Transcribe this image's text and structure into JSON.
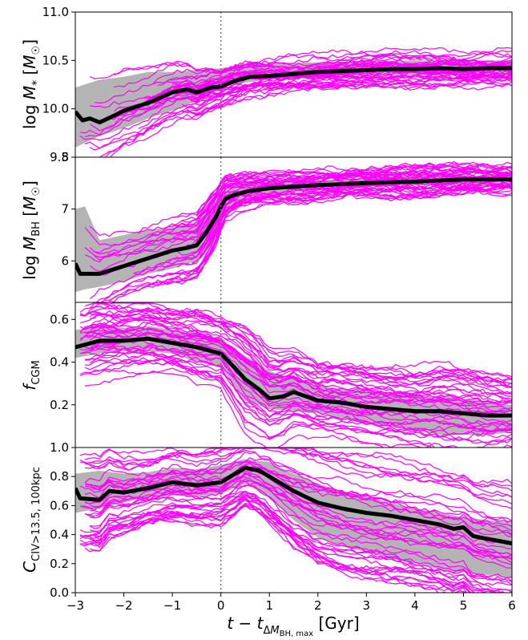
{
  "chart_data": {
    "type": "line",
    "xlabel": "t − t_{ΔM_BH,max} [Gyr]",
    "xlim": [
      -3,
      6
    ],
    "xticks": [
      -3,
      -2,
      -1,
      0,
      1,
      2,
      3,
      4,
      5,
      6
    ],
    "xtick_labels": [
      "−3",
      "−2",
      "−1",
      "0",
      "1",
      "2",
      "3",
      "4",
      "5",
      "6"
    ],
    "vline_x": 0,
    "colors": {
      "individual": "#ff00ff",
      "median": "#000000",
      "band": "#b4b4b4",
      "vline": "#777777"
    },
    "panels": [
      {
        "ylabel": "log M* [M☉]",
        "ylim": [
          9.5,
          11.0
        ],
        "yticks": [
          9.5,
          10.0,
          10.5,
          11.0
        ],
        "ytick_labels": [
          "9.5",
          "10.0",
          "10.5",
          "11.0"
        ],
        "median": {
          "x": [
            -3.0,
            -2.85,
            -2.7,
            -2.5,
            -2.2,
            -2.0,
            -1.5,
            -1.0,
            -0.7,
            -0.5,
            -0.2,
            0.0,
            0.3,
            0.6,
            1.0,
            1.5,
            2.0,
            2.5,
            3.0,
            3.5,
            4.0,
            4.5,
            5.0,
            5.5,
            6.0
          ],
          "y": [
            9.97,
            9.88,
            9.9,
            9.86,
            9.93,
            9.98,
            10.06,
            10.17,
            10.2,
            10.17,
            10.22,
            10.23,
            10.29,
            10.33,
            10.34,
            10.36,
            10.38,
            10.39,
            10.4,
            10.41,
            10.41,
            10.42,
            10.41,
            10.42,
            10.42
          ]
        },
        "band": {
          "x": [
            -3.0,
            -2.5,
            -2.0,
            -1.5,
            -1.0,
            -0.5,
            0.0,
            0.5,
            1.0,
            2.0,
            3.0,
            4.0,
            5.0,
            6.0
          ],
          "low": [
            9.6,
            9.72,
            9.8,
            9.9,
            9.98,
            10.08,
            10.22,
            10.27,
            10.3,
            10.33,
            10.34,
            10.35,
            10.35,
            10.35
          ],
          "high": [
            10.22,
            10.3,
            10.33,
            10.38,
            10.38,
            10.4,
            10.42,
            10.46,
            10.47,
            10.48,
            10.49,
            10.5,
            10.5,
            10.5
          ]
        }
      },
      {
        "ylabel": "log M_BH [M☉]",
        "ylim": [
          5.2,
          8.0
        ],
        "yticks": [
          6,
          7,
          8
        ],
        "ytick_labels": [
          "6",
          "7",
          "8"
        ],
        "median": {
          "x": [
            -3.0,
            -2.9,
            -2.5,
            -2.0,
            -1.5,
            -1.0,
            -0.7,
            -0.5,
            -0.3,
            -0.1,
            0.0,
            0.1,
            0.3,
            0.6,
            1.0,
            1.5,
            2.0,
            3.0,
            4.0,
            5.0,
            6.0
          ],
          "y": [
            5.95,
            5.75,
            5.75,
            5.9,
            6.05,
            6.2,
            6.25,
            6.3,
            6.55,
            6.85,
            7.05,
            7.2,
            7.28,
            7.35,
            7.4,
            7.43,
            7.46,
            7.5,
            7.53,
            7.57,
            7.57
          ]
        },
        "band": {
          "x": [
            -3.0,
            -2.8,
            -2.5,
            -2.0,
            -1.5,
            -1.0,
            -0.5,
            -0.2,
            0.0,
            0.3,
            1.0,
            2.0,
            3.0,
            4.0,
            5.0,
            6.0
          ],
          "low": [
            5.4,
            5.45,
            5.5,
            5.6,
            5.75,
            5.85,
            6.0,
            6.3,
            6.8,
            7.15,
            7.3,
            7.38,
            7.42,
            7.45,
            7.48,
            7.5
          ],
          "high": [
            7.0,
            7.05,
            6.4,
            6.5,
            6.6,
            6.65,
            6.75,
            7.0,
            7.3,
            7.45,
            7.5,
            7.55,
            7.6,
            7.62,
            7.64,
            7.65
          ]
        }
      },
      {
        "ylabel": "f_CGM",
        "ylim": [
          0.0,
          0.68
        ],
        "yticks": [
          0.2,
          0.4,
          0.6
        ],
        "ytick_labels": [
          "0.2",
          "0.4",
          "0.6"
        ],
        "median": {
          "x": [
            -3.0,
            -2.5,
            -2.0,
            -1.5,
            -1.0,
            -0.5,
            0.0,
            0.3,
            0.5,
            0.8,
            1.0,
            1.3,
            1.5,
            2.0,
            2.5,
            3.0,
            3.5,
            4.0,
            4.5,
            5.0,
            5.5,
            6.0
          ],
          "y": [
            0.47,
            0.5,
            0.5,
            0.51,
            0.49,
            0.47,
            0.44,
            0.37,
            0.32,
            0.27,
            0.23,
            0.24,
            0.26,
            0.22,
            0.21,
            0.19,
            0.18,
            0.17,
            0.17,
            0.16,
            0.15,
            0.15
          ]
        },
        "band": {
          "x": [
            -3.0,
            -2.5,
            -2.0,
            -1.5,
            -1.0,
            -0.5,
            0.0,
            0.5,
            1.0,
            1.5,
            2.0,
            3.0,
            4.0,
            4.5,
            5.0,
            5.5,
            6.0
          ],
          "low": [
            0.42,
            0.44,
            0.45,
            0.45,
            0.44,
            0.4,
            0.38,
            0.22,
            0.18,
            0.17,
            0.16,
            0.12,
            0.08,
            0.06,
            0.06,
            0.06,
            0.07
          ],
          "high": [
            0.55,
            0.57,
            0.56,
            0.57,
            0.55,
            0.54,
            0.5,
            0.43,
            0.36,
            0.32,
            0.29,
            0.26,
            0.24,
            0.24,
            0.23,
            0.21,
            0.2
          ]
        }
      },
      {
        "ylabel": "C_CIV>13.5, 100kpc",
        "ylim": [
          0.0,
          1.0
        ],
        "yticks": [
          0.0,
          0.2,
          0.4,
          0.6,
          0.8,
          1.0
        ],
        "ytick_labels": [
          "0.0",
          "0.2",
          "0.4",
          "0.6",
          "0.8",
          "1.0"
        ],
        "median": {
          "x": [
            -3.0,
            -2.9,
            -2.5,
            -2.3,
            -2.0,
            -1.5,
            -1.0,
            -0.5,
            0.0,
            0.2,
            0.5,
            0.8,
            1.0,
            1.5,
            2.0,
            2.5,
            3.0,
            3.5,
            4.0,
            4.5,
            4.8,
            5.0,
            5.2,
            5.5,
            6.0
          ],
          "y": [
            0.72,
            0.65,
            0.64,
            0.7,
            0.69,
            0.72,
            0.76,
            0.74,
            0.76,
            0.8,
            0.86,
            0.84,
            0.8,
            0.7,
            0.62,
            0.58,
            0.55,
            0.53,
            0.5,
            0.47,
            0.44,
            0.45,
            0.39,
            0.37,
            0.34
          ]
        },
        "band": {
          "x": [
            -3.0,
            -2.5,
            -2.0,
            -1.5,
            -1.0,
            -0.5,
            0.0,
            0.5,
            1.0,
            1.5,
            2.0,
            2.5,
            3.0,
            3.5,
            4.0,
            4.5,
            5.0,
            5.5,
            6.0
          ],
          "low": [
            0.55,
            0.58,
            0.62,
            0.66,
            0.67,
            0.66,
            0.68,
            0.75,
            0.66,
            0.5,
            0.38,
            0.32,
            0.28,
            0.24,
            0.2,
            0.16,
            0.14,
            0.12,
            0.1
          ],
          "high": [
            0.82,
            0.84,
            0.82,
            0.83,
            0.86,
            0.85,
            0.88,
            0.92,
            0.9,
            0.82,
            0.75,
            0.7,
            0.66,
            0.62,
            0.58,
            0.55,
            0.52,
            0.5,
            0.48
          ]
        }
      }
    ]
  }
}
